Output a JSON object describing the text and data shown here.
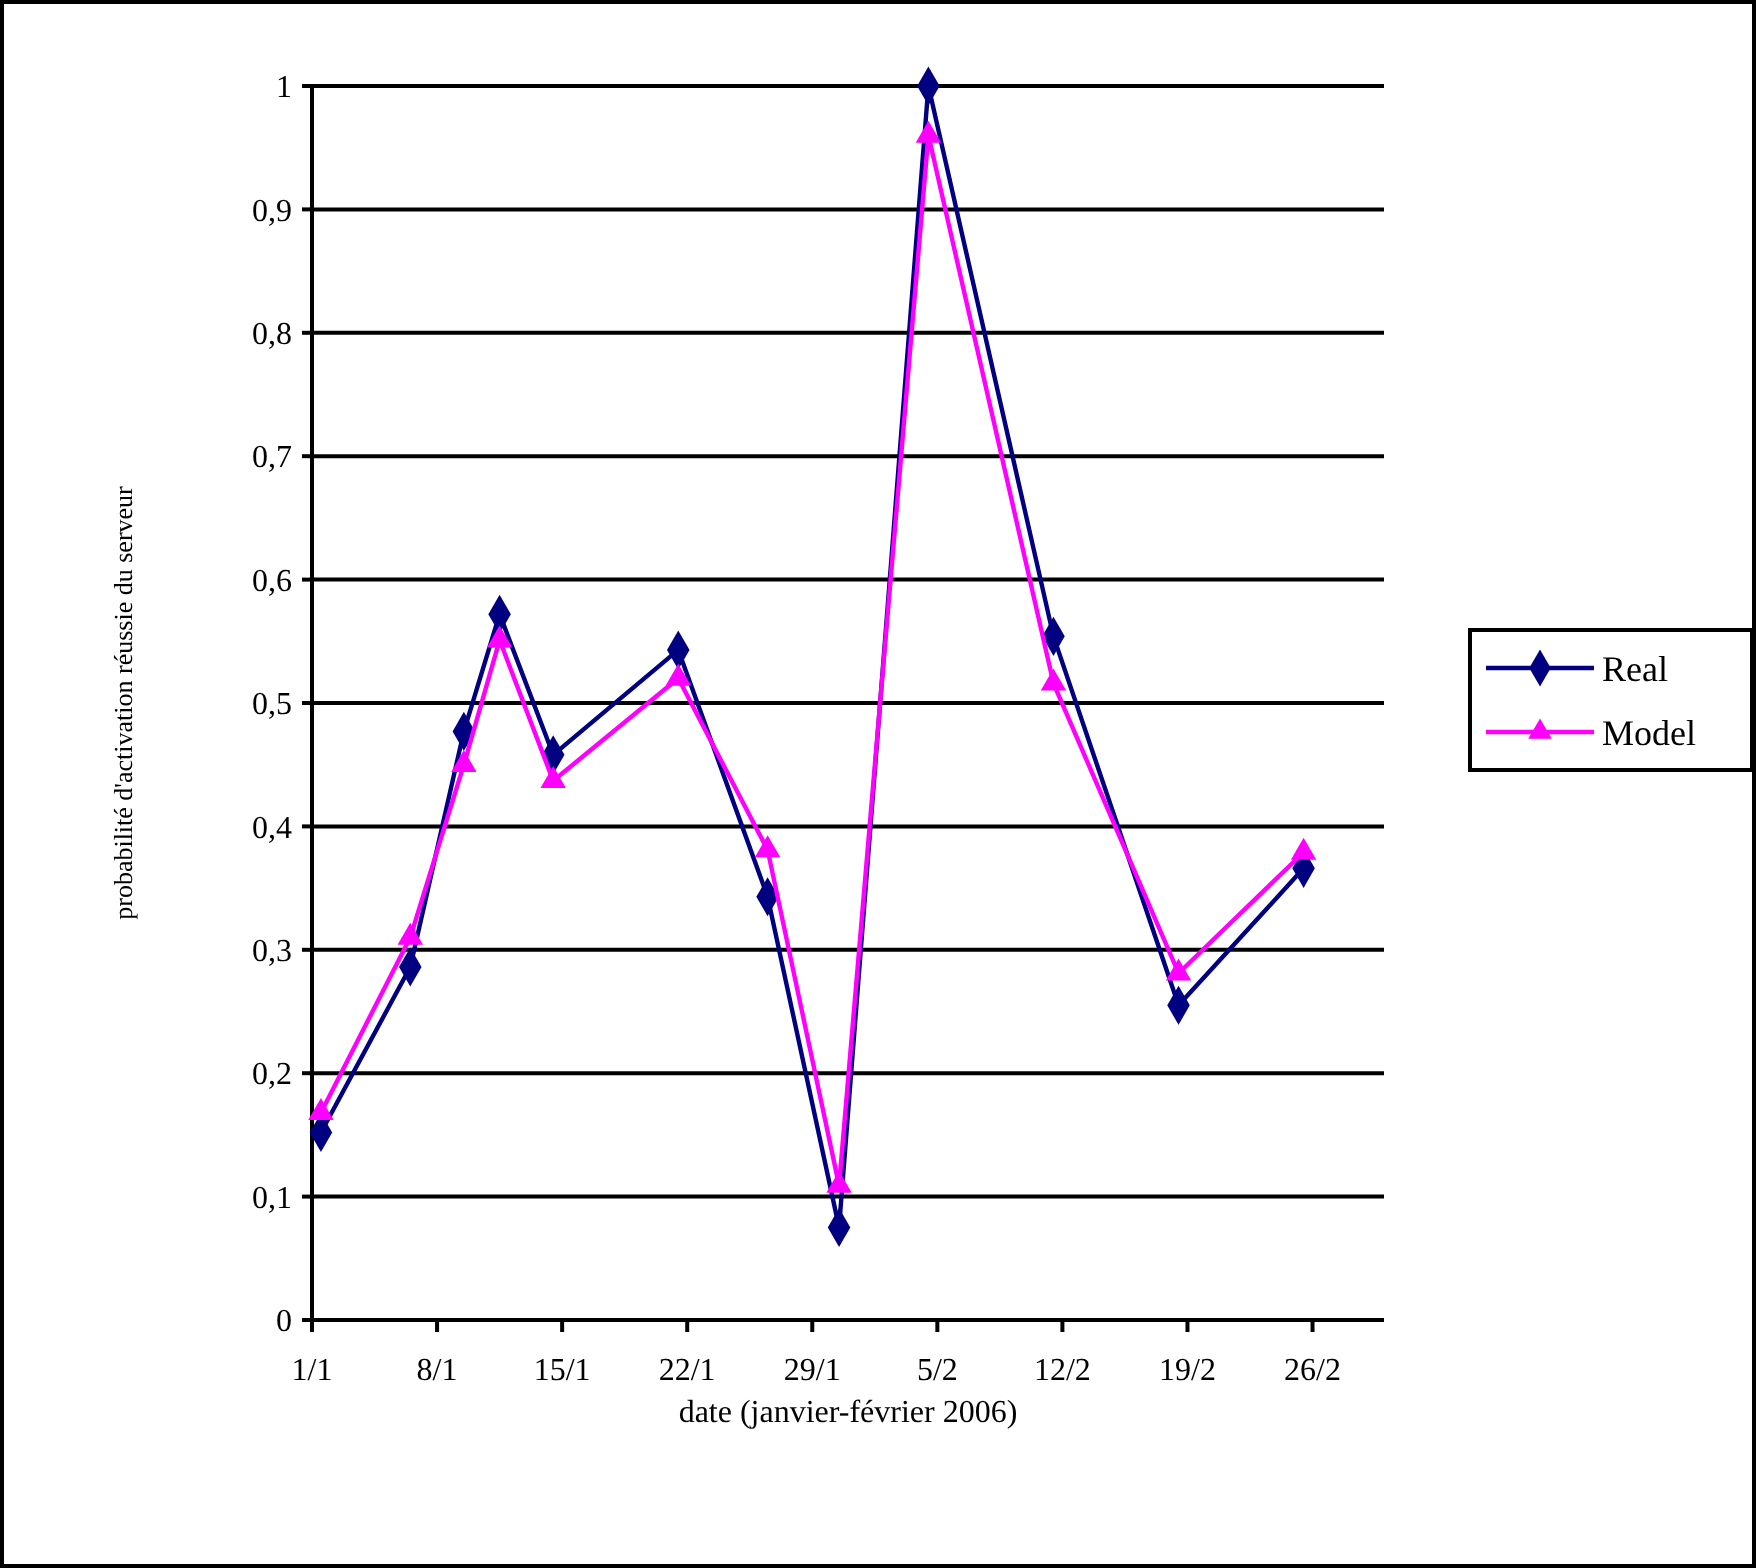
{
  "chart_data": {
    "type": "line",
    "xlabel": "date (janvier-février 2006)",
    "ylabel": "probabilité d'activation réussie du serveur",
    "x": [
      "2006-01-01T12:00",
      "2006-01-06T12:00",
      "2006-01-09T12:00",
      "2006-01-11T12:00",
      "2006-01-14T12:00",
      "2006-01-21T12:00",
      "2006-01-26T12:00",
      "2006-01-30T12:00",
      "2006-02-04T12:00",
      "2006-02-11T12:00",
      "2006-02-18T12:00",
      "2006-02-25T12:00"
    ],
    "series": [
      {
        "name": "Real",
        "color": "#000080",
        "marker": "diamond",
        "values": [
          0.152,
          0.286,
          0.477,
          0.572,
          0.458,
          0.543,
          0.343,
          0.075,
          1.0,
          0.554,
          0.255,
          0.366
        ]
      },
      {
        "name": "Model",
        "color": "#ff00ff",
        "marker": "triangle",
        "values": [
          0.168,
          0.31,
          0.45,
          0.551,
          0.437,
          0.52,
          0.381,
          0.109,
          0.96,
          0.516,
          0.281,
          0.379
        ]
      }
    ],
    "xlim": [
      "2006-01-01",
      "2006-03-02"
    ],
    "xticks": [
      {
        "value": "2006-01-01",
        "label": "1/1"
      },
      {
        "value": "2006-01-08",
        "label": "8/1"
      },
      {
        "value": "2006-01-15",
        "label": "15/1"
      },
      {
        "value": "2006-01-22",
        "label": "22/1"
      },
      {
        "value": "2006-01-29",
        "label": "29/1"
      },
      {
        "value": "2006-02-05",
        "label": "5/2"
      },
      {
        "value": "2006-02-12",
        "label": "12/2"
      },
      {
        "value": "2006-02-19",
        "label": "19/2"
      },
      {
        "value": "2006-02-26",
        "label": "26/2"
      }
    ],
    "ylim": [
      0,
      1
    ],
    "yticks": [
      {
        "value": 0,
        "label": "0"
      },
      {
        "value": 0.1,
        "label": "0,1"
      },
      {
        "value": 0.2,
        "label": "0,2"
      },
      {
        "value": 0.3,
        "label": "0,3"
      },
      {
        "value": 0.4,
        "label": "0,4"
      },
      {
        "value": 0.5,
        "label": "0,5"
      },
      {
        "value": 0.6,
        "label": "0,6"
      },
      {
        "value": 0.7,
        "label": "0,7"
      },
      {
        "value": 0.8,
        "label": "0,8"
      },
      {
        "value": 0.9,
        "label": "0,9"
      },
      {
        "value": 1,
        "label": "1"
      }
    ],
    "grid": "y",
    "legend": "right",
    "line_style": "solid"
  }
}
